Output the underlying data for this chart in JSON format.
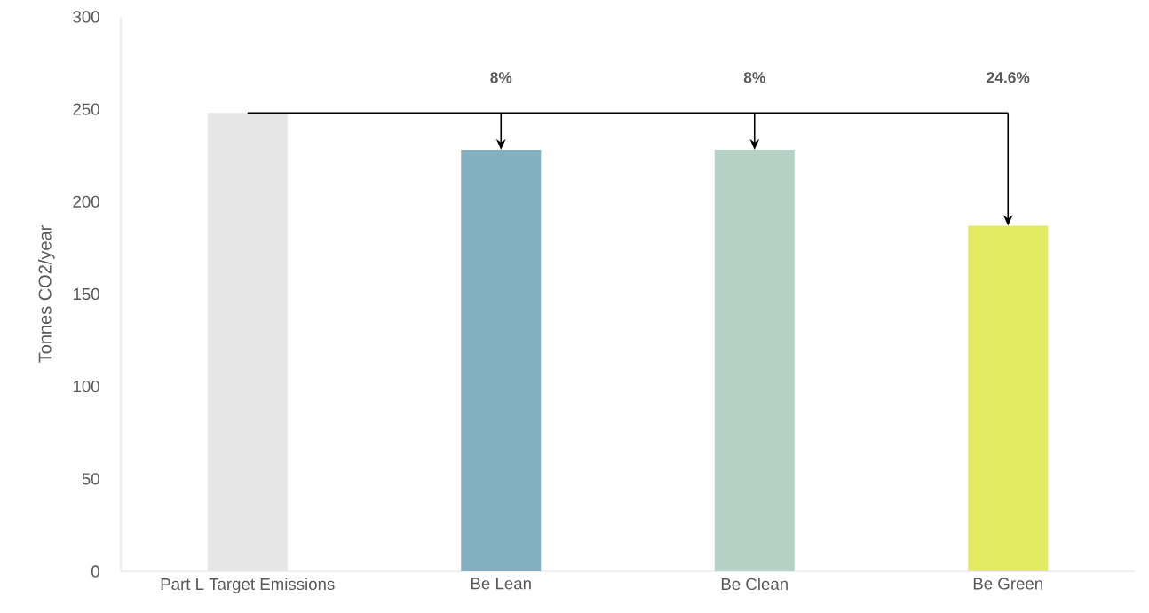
{
  "chart_data": {
    "type": "bar",
    "ylabel": "Tonnes CO2/year",
    "categories": [
      "Part L Target Emissions",
      "Be Lean",
      "Be Clean",
      "Be Green"
    ],
    "series": [
      {
        "values": [
          248,
          228,
          228,
          187
        ],
        "colors": [
          "#e6e6e6",
          "#82b0c0",
          "#b5d1c6",
          "#e2ea62"
        ]
      },
      {
        "type": "line",
        "values": [
          248,
          248,
          248,
          248
        ],
        "color": "#000000"
      }
    ],
    "ylim": [
      0,
      300
    ],
    "yticks": [
      0,
      50,
      100,
      150,
      200,
      250,
      300
    ],
    "grid": false,
    "marker": "none",
    "annotations": [
      "8%",
      "8%",
      "24.6%"
    ]
  }
}
